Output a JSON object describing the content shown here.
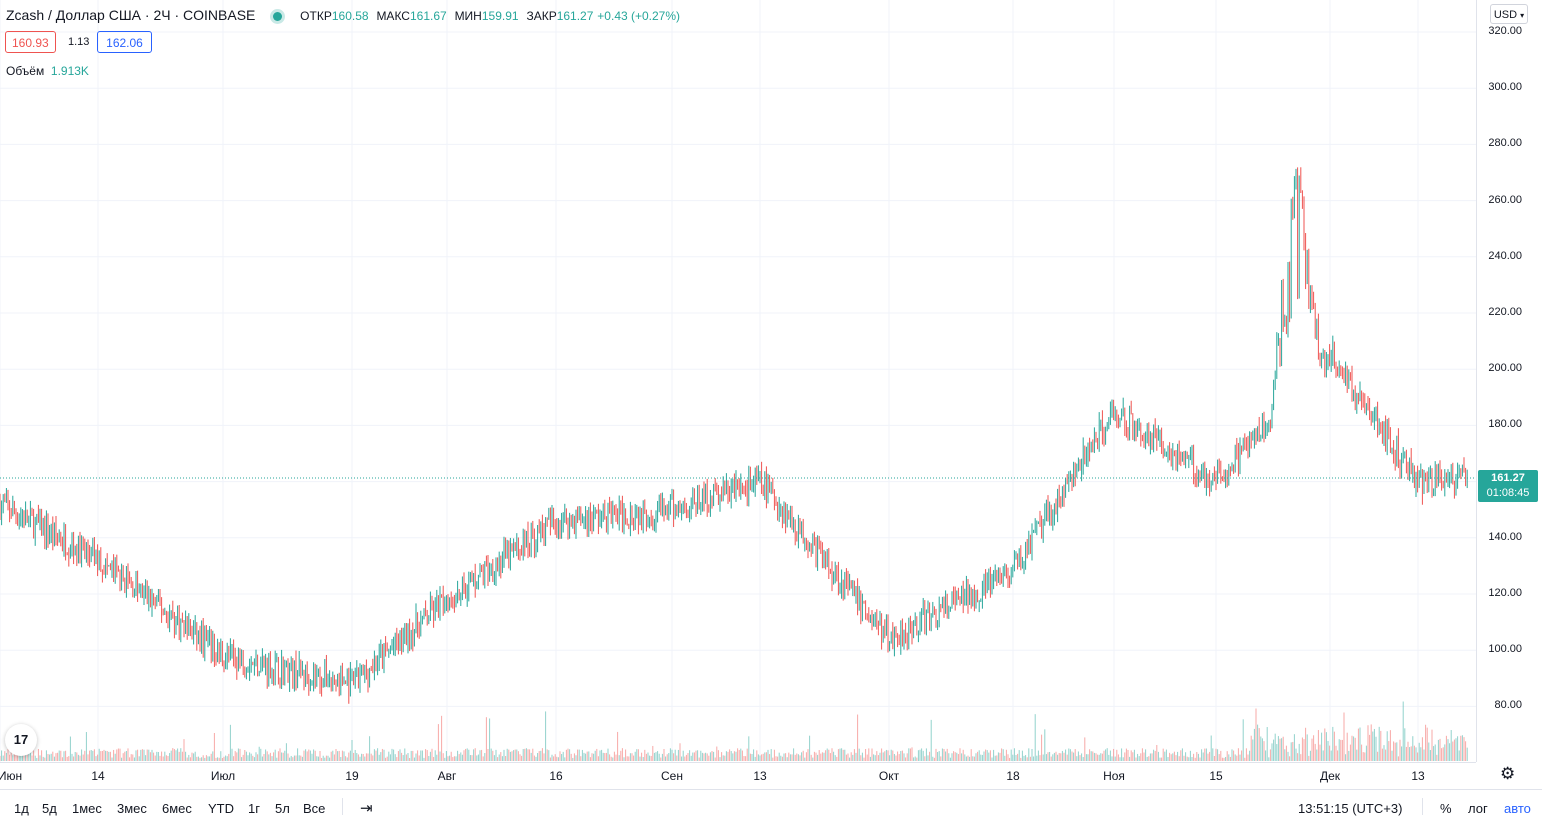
{
  "legend": {
    "symbol": "Zcash",
    "sep": "/",
    "currency_name": "Доллар США",
    "interval": "2Ч",
    "exchange": "COINBASE",
    "open_label": "ОТКР",
    "open": "160.58",
    "high_label": "МАКС",
    "high": "161.67",
    "low_label": "МИН",
    "low": "159.91",
    "close_label": "ЗАКР",
    "close": "161.27",
    "change": "+0.43 (+0.27%)"
  },
  "order": {
    "sell": "160.93",
    "spread": "1.13",
    "buy": "162.06"
  },
  "volume": {
    "label": "Объём",
    "value": "1.913K"
  },
  "currency_button": "USD",
  "price_axis": [
    "320.00",
    "300.00",
    "280.00",
    "260.00",
    "240.00",
    "220.00",
    "200.00",
    "180.00",
    "160.00",
    "140.00",
    "120.00",
    "100.00",
    "80.00"
  ],
  "current_price": {
    "price": "161.27",
    "countdown": "01:08:45"
  },
  "time_axis": [
    "Июн",
    "14",
    "Июл",
    "19",
    "Авг",
    "16",
    "Сен",
    "13",
    "Окт",
    "18",
    "Ноя",
    "15",
    "Дек",
    "13"
  ],
  "ranges": [
    "1д",
    "5д",
    "1мес",
    "3мес",
    "6мес",
    "YTD",
    "1г",
    "5л",
    "Все"
  ],
  "clock": "13:51:15 (UTC+3)",
  "percent_btn": "%",
  "log_btn": "лог",
  "auto_btn": "авто",
  "logo_text": "17",
  "colors": {
    "up": "#26a69a",
    "down": "#ef5350",
    "grid": "#f0f3fa",
    "accent": "#2962ff"
  },
  "chart_data": {
    "type": "candlestick",
    "interval": "2H",
    "ylim": [
      60,
      320
    ],
    "x": [
      "Июн",
      "14",
      "Июл",
      "19",
      "Авг",
      "16",
      "Сен",
      "13",
      "Окт",
      "18",
      "Ноя",
      "15",
      "Дек",
      "13",
      "end"
    ],
    "y": [
      152,
      132,
      98,
      88,
      118,
      146,
      150,
      160,
      104,
      128,
      185,
      160,
      205,
      160,
      161.27
    ],
    "last_price": 161.27
  }
}
